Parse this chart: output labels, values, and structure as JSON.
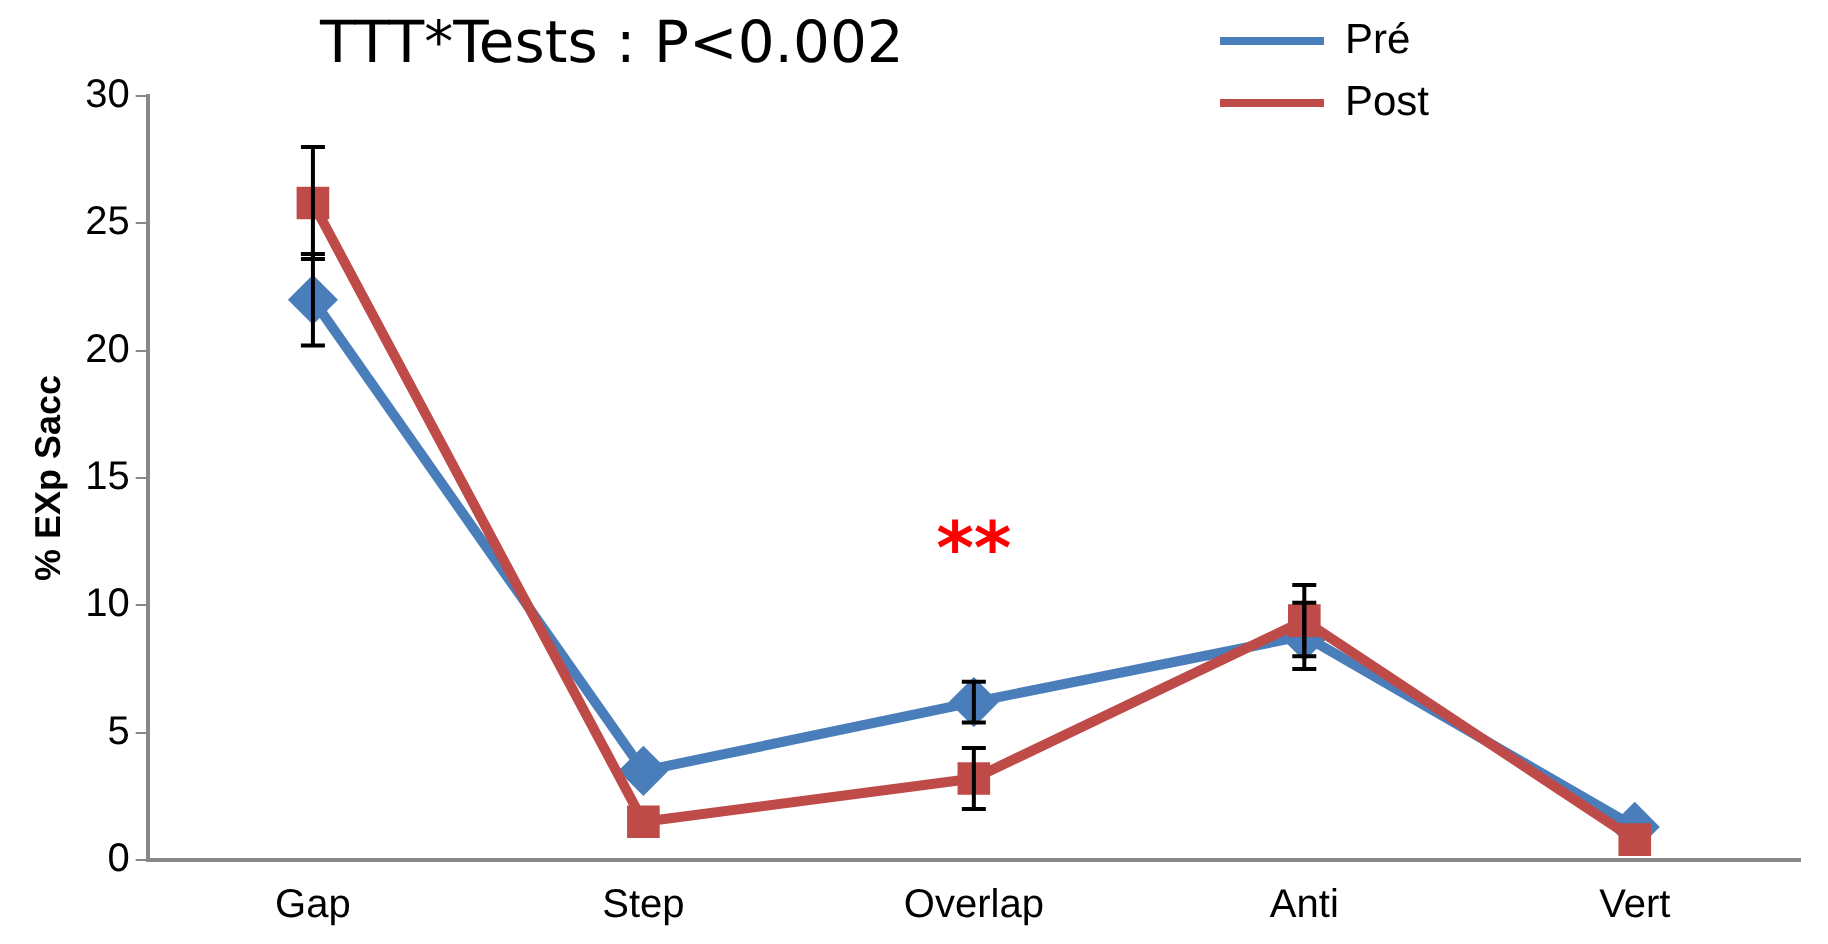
{
  "chart_data": {
    "type": "line",
    "title": "TTT*Tests : P<0.002",
    "ylabel": "% EXp Sacc",
    "categories": [
      "Gap",
      "Step",
      "Overlap",
      "Anti",
      "Vert"
    ],
    "series": [
      {
        "name": "Pré",
        "color": "#4a7ebb",
        "marker": "diamond",
        "values": [
          22,
          3.5,
          6.2,
          8.8,
          1.3
        ],
        "errors": [
          1.8,
          null,
          0.8,
          1.3,
          null
        ]
      },
      {
        "name": "Post",
        "color": "#be4b48",
        "marker": "square",
        "values": [
          25.8,
          1.5,
          3.2,
          9.4,
          0.8
        ],
        "errors": [
          2.2,
          null,
          1.2,
          1.4,
          null
        ]
      }
    ],
    "ylim": [
      0,
      30
    ],
    "yticks": [
      0,
      5,
      10,
      15,
      20,
      25,
      30
    ],
    "grid": false,
    "legend": "top right",
    "annotations": [
      "**"
    ]
  }
}
